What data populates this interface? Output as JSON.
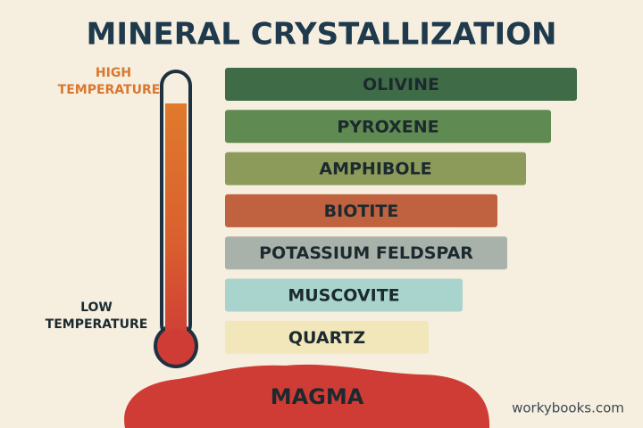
{
  "title": "MINERAL CRYSTALLIZATION",
  "high_temperature": [
    "HIGH",
    "TEMPERATURE"
  ],
  "low_temperature": [
    "LOW",
    "TEMPERATURE"
  ],
  "minerals": [
    {
      "label": "OLIVINE",
      "color": "#3f6c47"
    },
    {
      "label": "PYROXENE",
      "color": "#5f8a51"
    },
    {
      "label": "AMPHIBOLE",
      "color": "#8d9b5a"
    },
    {
      "label": "BIOTITE",
      "color": "#c0623f"
    },
    {
      "label": "POTASSIUM FELDSPAR",
      "color": "#a9b2aa"
    },
    {
      "label": "MUSCOVITE",
      "color": "#a9d4cd"
    },
    {
      "label": "QUARTZ",
      "color": "#f2e7ba"
    }
  ],
  "magma": "MAGMA",
  "footer": "workybooks.com"
}
